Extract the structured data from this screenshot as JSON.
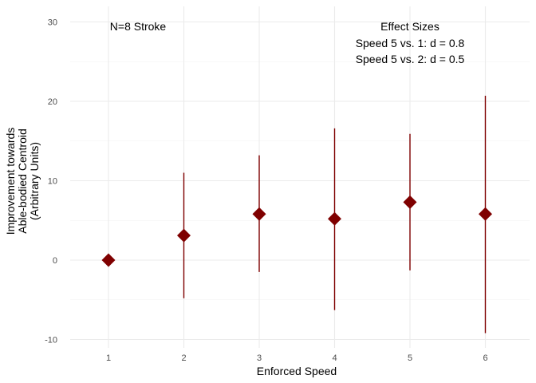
{
  "chart_data": {
    "type": "scatter",
    "x": [
      1,
      2,
      3,
      4,
      5,
      6
    ],
    "values": [
      0,
      3.1,
      5.8,
      5.2,
      7.3,
      5.8
    ],
    "lower": [
      0,
      -4.8,
      -1.5,
      -6.3,
      -1.3,
      -9.2
    ],
    "upper": [
      0,
      11.0,
      13.2,
      16.6,
      15.9,
      20.7
    ],
    "xlabel": "Enforced Speed",
    "ylabel_lines": [
      "Improvement towards",
      "Able-bodied Centroid",
      "(Arbitrary Units)"
    ],
    "x_ticks": [
      1,
      2,
      3,
      4,
      5,
      6
    ],
    "y_ticks": [
      -10,
      0,
      10,
      20,
      30
    ],
    "xlim": [
      0.5,
      6.6
    ],
    "ylim": [
      -11,
      32
    ],
    "grid": true,
    "color": "#7f0000",
    "annotations": {
      "sample": "N=8 Stroke",
      "effect_title": "Effect Sizes",
      "effect_lines": [
        "Speed 5 vs. 1: d = 0.8",
        "Speed 5 vs. 2: d = 0.5"
      ]
    }
  }
}
